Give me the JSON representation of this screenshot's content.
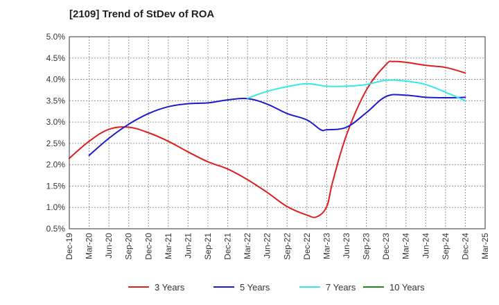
{
  "chart_data": {
    "type": "line",
    "title": "[2109]  Trend of StDev of ROA",
    "xlabel": "",
    "ylabel": "",
    "ylim": [
      0.5,
      5.0
    ],
    "yticks": [
      0.5,
      1.0,
      1.5,
      2.0,
      2.5,
      3.0,
      3.5,
      4.0,
      4.5,
      5.0
    ],
    "ytick_labels": [
      "0.5%",
      "1.0%",
      "1.5%",
      "2.0%",
      "2.5%",
      "3.0%",
      "3.5%",
      "4.0%",
      "4.5%",
      "5.0%"
    ],
    "categories": [
      "Dec-19",
      "Mar-20",
      "Jun-20",
      "Sep-20",
      "Dec-20",
      "Mar-21",
      "Jun-21",
      "Sep-21",
      "Dec-21",
      "Mar-22",
      "Jun-22",
      "Sep-22",
      "Dec-22",
      "Mar-23",
      "Jun-23",
      "Sep-23",
      "Dec-23",
      "Mar-24",
      "Jun-24",
      "Sep-24",
      "Dec-24",
      "Mar-25"
    ],
    "grid": true,
    "legend_position": "bottom",
    "series": [
      {
        "name": "3 Years",
        "color": "#dd1c1c",
        "values": [
          2.15,
          2.55,
          2.83,
          2.88,
          2.75,
          2.55,
          2.3,
          2.07,
          1.9,
          1.65,
          1.35,
          1.02,
          0.82,
          1.02,
          2.7,
          3.75,
          4.35,
          4.4,
          4.33,
          4.28,
          4.15,
          null
        ],
        "extra_points": [
          {
            "x": 12.5,
            "y": 0.78
          },
          {
            "x": 13.3,
            "y": 1.6
          },
          {
            "x": 16.35,
            "y": 4.42
          }
        ]
      },
      {
        "name": "5 Years",
        "color": "#1a1acc",
        "values": [
          null,
          2.22,
          2.62,
          2.95,
          3.2,
          3.36,
          3.43,
          3.45,
          3.52,
          3.55,
          3.42,
          3.2,
          3.05,
          2.82,
          2.88,
          3.22,
          3.6,
          3.63,
          3.58,
          3.57,
          3.58,
          null
        ],
        "extra_points": [
          {
            "x": 12.7,
            "y": 2.82
          }
        ]
      },
      {
        "name": "7 Years",
        "color": "#33e8e8",
        "values": [
          null,
          null,
          null,
          null,
          null,
          null,
          null,
          null,
          null,
          3.56,
          3.72,
          3.83,
          3.9,
          3.84,
          3.84,
          3.88,
          3.98,
          3.96,
          3.88,
          3.7,
          3.5,
          null
        ]
      },
      {
        "name": "10 Years",
        "color": "#1a8a1a",
        "values": [
          null,
          null,
          null,
          null,
          null,
          null,
          null,
          null,
          null,
          null,
          null,
          null,
          null,
          null,
          null,
          null,
          null,
          null,
          null,
          null,
          null,
          null
        ]
      }
    ]
  }
}
